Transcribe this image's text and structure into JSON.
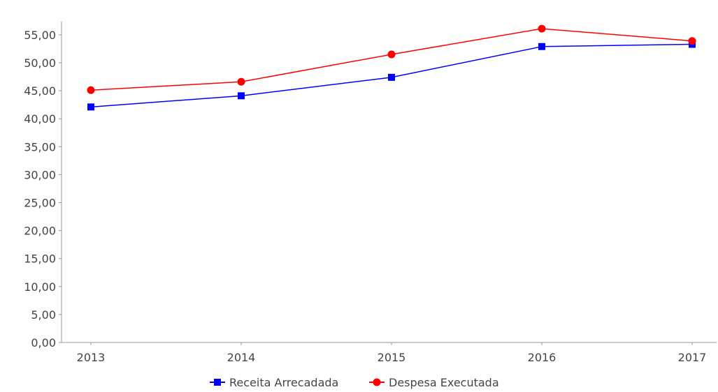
{
  "chart_data": {
    "type": "line",
    "title": "",
    "xlabel": "",
    "ylabel": "",
    "categories": [
      "2013",
      "2014",
      "2015",
      "2016",
      "2017"
    ],
    "ylim": [
      0,
      57
    ],
    "yticks": [
      "0,00",
      "5,00",
      "10,00",
      "15,00",
      "20,00",
      "25,00",
      "30,00",
      "35,00",
      "40,00",
      "45,00",
      "50,00",
      "55,00"
    ],
    "ytick_values": [
      0,
      5,
      10,
      15,
      20,
      25,
      30,
      35,
      40,
      45,
      50,
      55
    ],
    "grid": false,
    "legend_position": "bottom-center",
    "series": [
      {
        "name": "Receita Arrecadada",
        "color": "#0000ff",
        "marker": "square",
        "values": [
          42.1,
          44.1,
          47.4,
          52.9,
          53.3
        ]
      },
      {
        "name": "Despesa Executada",
        "color": "#ff0000",
        "marker": "circle",
        "values": [
          45.1,
          46.6,
          51.5,
          56.1,
          53.9
        ]
      }
    ]
  }
}
